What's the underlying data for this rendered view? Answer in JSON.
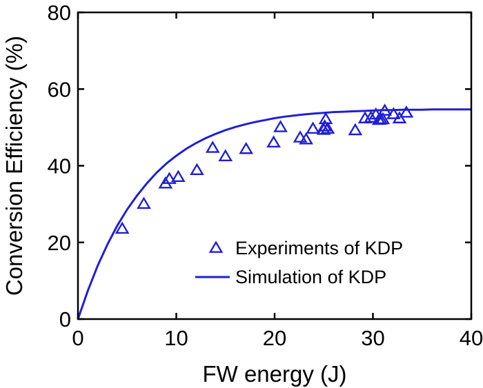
{
  "chart_data": {
    "type": "scatter",
    "title": "",
    "xlabel": "FW energy (J)",
    "ylabel": "Conversion Efficiency (%)",
    "xlim": [
      0,
      40
    ],
    "ylim": [
      0,
      80
    ],
    "xticks": [
      0,
      10,
      20,
      30,
      40
    ],
    "yticks": [
      0,
      20,
      40,
      60,
      80
    ],
    "grid": false,
    "legend_position": "bottom-right",
    "color": "#1f1fd6",
    "series": [
      {
        "name": "Experiments of KDP",
        "kind": "scatter",
        "marker": "triangle-open",
        "x": [
          4.5,
          6.7,
          8.9,
          9.3,
          10.2,
          12.1,
          13.7,
          15.0,
          17.1,
          19.9,
          20.6,
          22.6,
          23.2,
          23.9,
          25.0,
          25.1,
          25.2,
          25.4,
          28.2,
          29.2,
          29.8,
          30.3,
          30.6,
          30.8,
          31.0,
          31.2,
          32.1,
          32.7,
          33.4
        ],
        "y": [
          23.5,
          30.0,
          35.3,
          36.5,
          37.0,
          38.8,
          44.6,
          42.4,
          44.3,
          46.0,
          50.0,
          47.3,
          46.8,
          49.6,
          49.3,
          50.2,
          52.1,
          49.6,
          49.2,
          52.3,
          52.5,
          53.3,
          51.9,
          52.0,
          52.1,
          54.3,
          53.4,
          52.3,
          53.8
        ]
      },
      {
        "name": "Simulation of KDP",
        "kind": "line",
        "x": [
          0,
          1,
          2,
          3,
          4,
          5,
          6,
          7,
          8,
          9,
          10,
          11,
          12,
          13,
          14,
          15,
          16,
          17,
          18,
          19,
          20,
          21,
          22,
          23,
          24,
          25,
          26,
          27,
          28,
          29,
          30,
          31,
          32,
          33,
          34,
          35,
          36,
          37,
          38,
          39,
          40
        ],
        "y": [
          0,
          7.4,
          13.9,
          19.5,
          24.4,
          28.6,
          32.2,
          35.4,
          38.2,
          40.6,
          42.6,
          44.4,
          45.9,
          47.2,
          48.3,
          49.3,
          50.1,
          50.8,
          51.4,
          51.9,
          52.4,
          52.8,
          53.1,
          53.4,
          53.6,
          53.8,
          54.0,
          54.1,
          54.2,
          54.3,
          54.4,
          54.5,
          54.5,
          54.6,
          54.6,
          54.6,
          54.7,
          54.7,
          54.7,
          54.7,
          54.7
        ]
      }
    ]
  }
}
